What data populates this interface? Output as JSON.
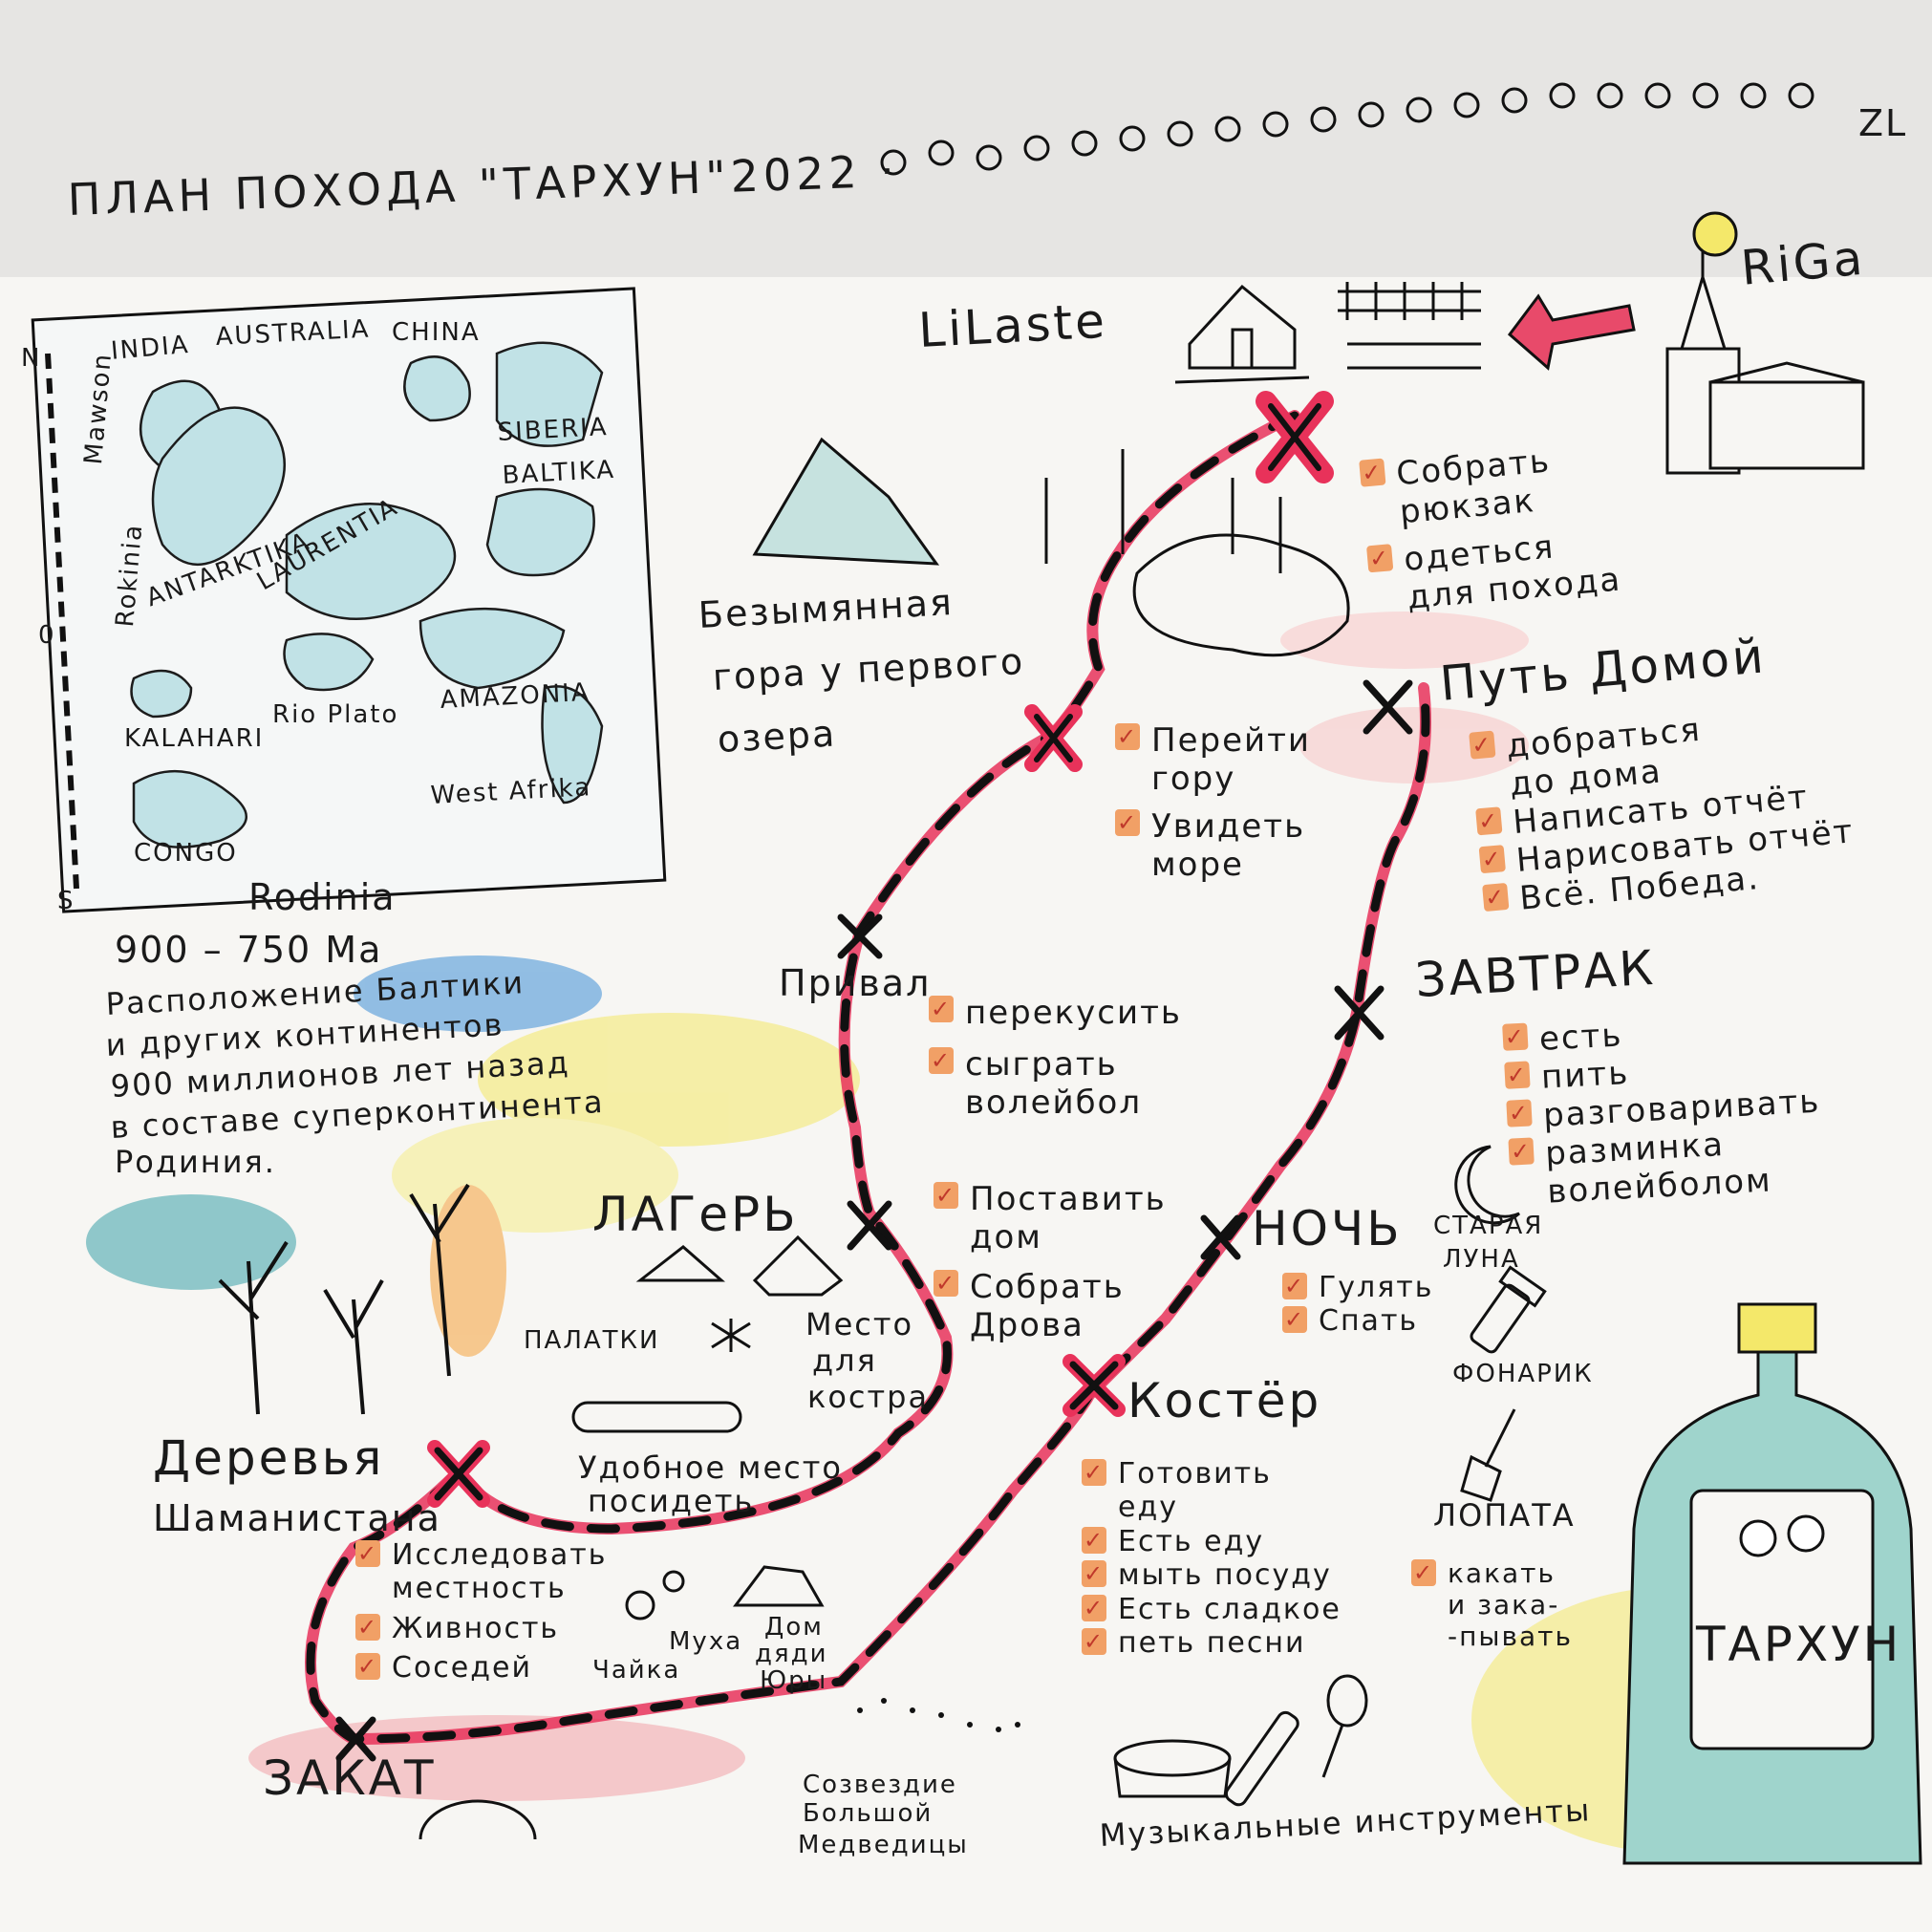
{
  "header": {
    "title": "ПЛАН ПОХОДА \"ТАРХУН\"2022 ·",
    "signature": "ZL"
  },
  "places": {
    "riga": "RiGa",
    "lilaste": "LiLaste",
    "mountain": [
      "Безымянная",
      "гора у первого",
      "озера"
    ],
    "camp": "ЛАГеРЬ",
    "trees": [
      "Деревья",
      "Шаманистана"
    ],
    "sunset": "ЗАКАТ"
  },
  "rodinia": {
    "title": "Rodinia",
    "age": "900 – 750 Ма",
    "description": [
      "Расположение Балтики",
      "и других континентов",
      "900 миллионов лет назад",
      "в составе суперконтинента",
      "Родиния."
    ],
    "continents": [
      "INDIA",
      "AUSTRALIA",
      "CHINA",
      "SIBERIA",
      "BALTIKA",
      "LAURENTIA",
      "ANTARKTIKA",
      "Mawson",
      "Rokinia",
      "KALAHARI",
      "Rio Plato",
      "AMAZONIA",
      "West Afrika",
      "CONGO"
    ],
    "scale": [
      "N",
      "0",
      "S"
    ]
  },
  "stops": {
    "start": {
      "items": [
        "Собрать\nрюкзак",
        "одеться\nдля похода"
      ]
    },
    "mountain": {
      "items": [
        "Перейти\nгору",
        "Увидеть\nморе"
      ]
    },
    "rest": {
      "title": "Привал",
      "items": [
        "перекусить",
        "сыграть\nволейбол"
      ]
    },
    "camp": {
      "items": [
        "Поставить\nдом",
        "Собрать\nДрова"
      ]
    },
    "trees": {
      "items": [
        "Исследовать\nместность",
        "Живность",
        "Соседей"
      ]
    },
    "fire": {
      "title": "Костёр",
      "items": [
        "Готовить\nеду",
        "Есть еду",
        "мыть посуду",
        "Есть сладкое",
        "петь песни"
      ]
    },
    "night": {
      "title": "НОЧЬ",
      "items": [
        "Гулять",
        "Спать"
      ]
    },
    "breakfast": {
      "title": "ЗАВТРАК",
      "items": [
        "есть",
        "пить",
        "разговаривать",
        "разминка\nволейболом"
      ]
    },
    "home": {
      "title": "Путь Домой",
      "items": [
        "добраться\nдо дома",
        "Написать отчёт",
        "Нарисовать отчёт",
        "Всё. Победа."
      ]
    },
    "shovel": {
      "items": [
        "какать\nи зака-\n-пывать"
      ]
    }
  },
  "labels": {
    "tents": "ПАЛАТКИ",
    "firePlace": [
      "Место",
      "для",
      "костра"
    ],
    "sitPlace": [
      "Удобное место",
      "посидеть"
    ],
    "gull": "Чайка",
    "fly": "Муха",
    "uncleHouse": [
      "Дом",
      "дяди",
      "Юры"
    ],
    "oldMoon": [
      "СТАРАЯ",
      "ЛУНА"
    ],
    "flashlight": "ФОНАРИК",
    "shovel": "ЛОПАТА",
    "constellation": [
      "Созвездие",
      "Большой",
      "Медведицы"
    ],
    "instruments": "Музыкальные инструменты",
    "bottle": "ТАРХУН"
  },
  "colors": {
    "route": "#e8325a",
    "routeDash": "#1a1a1a",
    "checkbox": "#f1a066",
    "arrow": "#e84a6a",
    "bottle": "#7fc7c0",
    "sea": "#3f8fd6",
    "sand": "#f4e867"
  }
}
